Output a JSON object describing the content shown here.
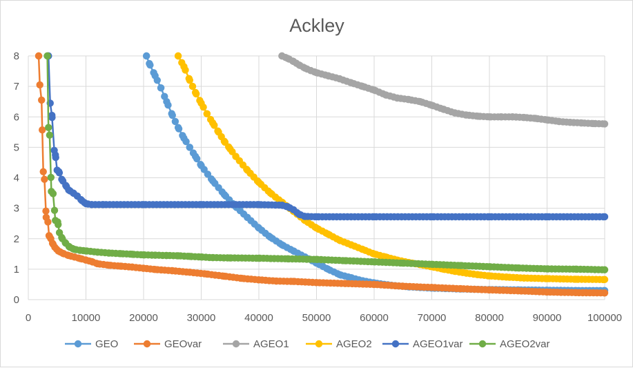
{
  "chart_data": {
    "type": "scatter",
    "title": "Ackley",
    "xlabel": "",
    "ylabel": "",
    "xlim": [
      0,
      100000
    ],
    "ylim": [
      0,
      8
    ],
    "x_ticks": [
      0,
      10000,
      20000,
      30000,
      40000,
      50000,
      60000,
      70000,
      80000,
      90000,
      100000
    ],
    "y_ticks": [
      0,
      1,
      2,
      3,
      4,
      5,
      6,
      7,
      8
    ],
    "grid": true,
    "legend_position": "bottom",
    "series": [
      {
        "name": "GEO",
        "color": "#5B9BD5",
        "points": [
          [
            20500,
            8.0
          ],
          [
            21000,
            7.75
          ],
          [
            22000,
            7.35
          ],
          [
            23000,
            6.95
          ],
          [
            24000,
            6.5
          ],
          [
            25000,
            6.05
          ],
          [
            26000,
            5.65
          ],
          [
            27000,
            5.3
          ],
          [
            28000,
            5.0
          ],
          [
            29000,
            4.7
          ],
          [
            30000,
            4.4
          ],
          [
            32000,
            3.9
          ],
          [
            34000,
            3.45
          ],
          [
            36000,
            3.05
          ],
          [
            38000,
            2.7
          ],
          [
            40000,
            2.35
          ],
          [
            42000,
            2.05
          ],
          [
            44000,
            1.8
          ],
          [
            46000,
            1.6
          ],
          [
            48000,
            1.4
          ],
          [
            50000,
            1.2
          ],
          [
            52000,
            1.0
          ],
          [
            54000,
            0.82
          ],
          [
            56000,
            0.72
          ],
          [
            58000,
            0.62
          ],
          [
            60000,
            0.55
          ],
          [
            63000,
            0.47
          ],
          [
            66000,
            0.42
          ],
          [
            70000,
            0.38
          ],
          [
            75000,
            0.35
          ],
          [
            80000,
            0.33
          ],
          [
            85000,
            0.32
          ],
          [
            90000,
            0.31
          ],
          [
            95000,
            0.3
          ],
          [
            100000,
            0.3
          ]
        ]
      },
      {
        "name": "GEOvar",
        "color": "#ED7D31",
        "points": [
          [
            1800,
            8.0
          ],
          [
            2000,
            7.05
          ],
          [
            2300,
            6.55
          ],
          [
            2600,
            4.2
          ],
          [
            2800,
            3.95
          ],
          [
            3100,
            2.7
          ],
          [
            3400,
            2.55
          ],
          [
            3600,
            2.1
          ],
          [
            3900,
            2.0
          ],
          [
            4200,
            1.85
          ],
          [
            4600,
            1.72
          ],
          [
            5200,
            1.6
          ],
          [
            6000,
            1.52
          ],
          [
            7000,
            1.45
          ],
          [
            8000,
            1.4
          ],
          [
            9000,
            1.35
          ],
          [
            10000,
            1.3
          ],
          [
            11000,
            1.25
          ],
          [
            12000,
            1.18
          ],
          [
            14000,
            1.13
          ],
          [
            16000,
            1.1
          ],
          [
            18000,
            1.07
          ],
          [
            20000,
            1.03
          ],
          [
            22000,
            0.99
          ],
          [
            25000,
            0.95
          ],
          [
            28000,
            0.9
          ],
          [
            31000,
            0.84
          ],
          [
            34000,
            0.77
          ],
          [
            37000,
            0.7
          ],
          [
            40000,
            0.65
          ],
          [
            43000,
            0.61
          ],
          [
            46000,
            0.6
          ],
          [
            50000,
            0.56
          ],
          [
            55000,
            0.53
          ],
          [
            60000,
            0.5
          ],
          [
            65000,
            0.44
          ],
          [
            70000,
            0.4
          ],
          [
            75000,
            0.36
          ],
          [
            80000,
            0.32
          ],
          [
            85000,
            0.29
          ],
          [
            90000,
            0.25
          ],
          [
            95000,
            0.23
          ],
          [
            100000,
            0.22
          ]
        ]
      },
      {
        "name": "AGEO1",
        "color": "#A5A5A5",
        "points": [
          [
            44000,
            8.0
          ],
          [
            45000,
            7.92
          ],
          [
            46000,
            7.82
          ],
          [
            47000,
            7.7
          ],
          [
            48000,
            7.6
          ],
          [
            49000,
            7.52
          ],
          [
            50000,
            7.45
          ],
          [
            52000,
            7.35
          ],
          [
            54000,
            7.25
          ],
          [
            56000,
            7.12
          ],
          [
            58000,
            7.0
          ],
          [
            60000,
            6.88
          ],
          [
            62000,
            6.72
          ],
          [
            64000,
            6.62
          ],
          [
            66000,
            6.57
          ],
          [
            68000,
            6.5
          ],
          [
            70000,
            6.38
          ],
          [
            72000,
            6.25
          ],
          [
            74000,
            6.13
          ],
          [
            76000,
            6.06
          ],
          [
            78000,
            6.02
          ],
          [
            80000,
            6.0
          ],
          [
            82000,
            6.0
          ],
          [
            84000,
            6.0
          ],
          [
            86000,
            5.98
          ],
          [
            88000,
            5.95
          ],
          [
            90000,
            5.9
          ],
          [
            92000,
            5.85
          ],
          [
            94000,
            5.82
          ],
          [
            96000,
            5.8
          ],
          [
            98000,
            5.78
          ],
          [
            100000,
            5.77
          ]
        ]
      },
      {
        "name": "AGEO2",
        "color": "#FFC000",
        "points": [
          [
            26000,
            8.0
          ],
          [
            27000,
            7.65
          ],
          [
            28000,
            7.2
          ],
          [
            29000,
            6.8
          ],
          [
            30000,
            6.45
          ],
          [
            31000,
            6.1
          ],
          [
            32000,
            5.8
          ],
          [
            33000,
            5.5
          ],
          [
            34000,
            5.2
          ],
          [
            35000,
            4.95
          ],
          [
            36000,
            4.7
          ],
          [
            38000,
            4.25
          ],
          [
            40000,
            3.85
          ],
          [
            42000,
            3.5
          ],
          [
            44000,
            3.2
          ],
          [
            46000,
            2.9
          ],
          [
            48000,
            2.6
          ],
          [
            50000,
            2.35
          ],
          [
            52000,
            2.15
          ],
          [
            54000,
            1.95
          ],
          [
            56000,
            1.8
          ],
          [
            58000,
            1.65
          ],
          [
            60000,
            1.5
          ],
          [
            62000,
            1.4
          ],
          [
            64000,
            1.3
          ],
          [
            66000,
            1.22
          ],
          [
            68000,
            1.15
          ],
          [
            70000,
            1.08
          ],
          [
            72000,
            1.0
          ],
          [
            74000,
            0.93
          ],
          [
            76000,
            0.87
          ],
          [
            78000,
            0.82
          ],
          [
            80000,
            0.78
          ],
          [
            83000,
            0.74
          ],
          [
            86000,
            0.71
          ],
          [
            90000,
            0.69
          ],
          [
            95000,
            0.67
          ],
          [
            100000,
            0.66
          ]
        ]
      },
      {
        "name": "AGEO1var",
        "color": "#4472C4",
        "points": [
          [
            3500,
            8.0
          ],
          [
            3800,
            6.45
          ],
          [
            4100,
            6.05
          ],
          [
            4500,
            4.9
          ],
          [
            4700,
            4.75
          ],
          [
            5000,
            4.25
          ],
          [
            5300,
            4.2
          ],
          [
            5800,
            3.95
          ],
          [
            6500,
            3.75
          ],
          [
            7000,
            3.6
          ],
          [
            7800,
            3.5
          ],
          [
            8500,
            3.4
          ],
          [
            9300,
            3.25
          ],
          [
            10000,
            3.15
          ],
          [
            11000,
            3.12
          ],
          [
            13000,
            3.12
          ],
          [
            20000,
            3.12
          ],
          [
            30000,
            3.12
          ],
          [
            40000,
            3.12
          ],
          [
            44000,
            3.1
          ],
          [
            45000,
            3.05
          ],
          [
            46000,
            2.95
          ],
          [
            47000,
            2.8
          ],
          [
            48000,
            2.73
          ],
          [
            50000,
            2.72
          ],
          [
            60000,
            2.72
          ],
          [
            70000,
            2.72
          ],
          [
            80000,
            2.72
          ],
          [
            90000,
            2.72
          ],
          [
            100000,
            2.72
          ]
        ]
      },
      {
        "name": "AGEO2var",
        "color": "#70AD47",
        "points": [
          [
            3300,
            8.0
          ],
          [
            3500,
            5.65
          ],
          [
            3700,
            5.4
          ],
          [
            4000,
            3.55
          ],
          [
            4300,
            3.48
          ],
          [
            4700,
            2.6
          ],
          [
            5100,
            2.55
          ],
          [
            5400,
            2.2
          ],
          [
            5900,
            2.0
          ],
          [
            6500,
            1.85
          ],
          [
            7200,
            1.72
          ],
          [
            8000,
            1.65
          ],
          [
            9000,
            1.62
          ],
          [
            10000,
            1.6
          ],
          [
            12000,
            1.56
          ],
          [
            14000,
            1.53
          ],
          [
            16000,
            1.51
          ],
          [
            18000,
            1.49
          ],
          [
            20000,
            1.47
          ],
          [
            22000,
            1.46
          ],
          [
            24000,
            1.45
          ],
          [
            26000,
            1.44
          ],
          [
            28000,
            1.42
          ],
          [
            30000,
            1.4
          ],
          [
            32000,
            1.38
          ],
          [
            35000,
            1.37
          ],
          [
            40000,
            1.36
          ],
          [
            45000,
            1.34
          ],
          [
            50000,
            1.32
          ],
          [
            55000,
            1.28
          ],
          [
            60000,
            1.24
          ],
          [
            65000,
            1.2
          ],
          [
            70000,
            1.16
          ],
          [
            75000,
            1.12
          ],
          [
            80000,
            1.08
          ],
          [
            85000,
            1.04
          ],
          [
            90000,
            1.01
          ],
          [
            95000,
            1.0
          ],
          [
            100000,
            0.98
          ]
        ]
      }
    ]
  }
}
